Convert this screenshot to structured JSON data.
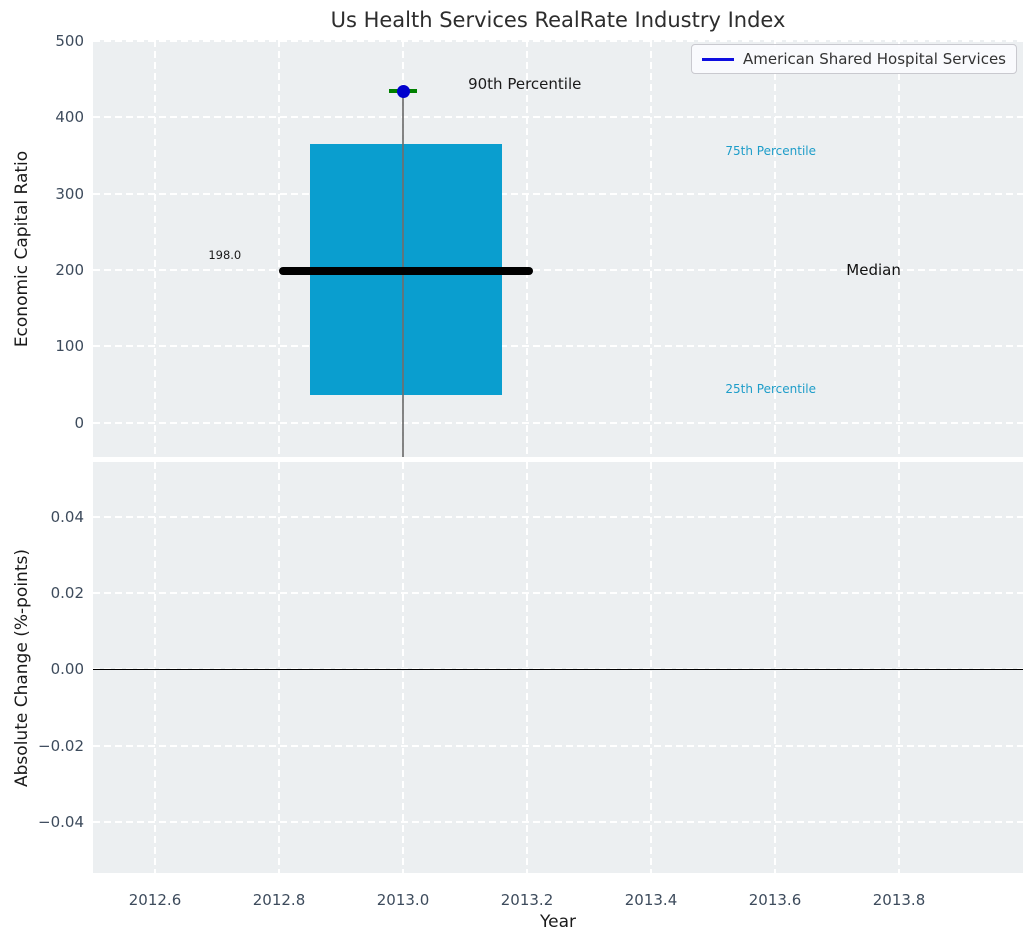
{
  "title": "Us Health Services RealRate Industry Index",
  "legend": {
    "label": "American Shared Hospital Services"
  },
  "colors": {
    "plot_bg": "#eceff1",
    "grid": "#ffffff",
    "box_fill": "#0a9ecf",
    "median_line": "#000000",
    "whisker": "#6f6f6f",
    "marker_dot": "#0000cd",
    "marker_cap": "#008000",
    "legend_line": "#0d0de0",
    "percentile_text": "#1e9dc9",
    "tick_text": "#3d4b5c",
    "label_text": "#1a1a1a",
    "zero_line": "#000000"
  },
  "chart_data": [
    {
      "type": "box",
      "title": "Us Health Services RealRate Industry Index",
      "ylabel": "Economic Capital Ratio",
      "xlim": [
        2012.5,
        2014.0
      ],
      "ylim": [
        -45,
        501
      ],
      "grid": true,
      "legend_position": "upper right",
      "yticks": {
        "values": [
          0,
          100,
          200,
          300,
          400,
          500
        ],
        "labels": [
          "0",
          "100",
          "200",
          "300",
          "400",
          "500"
        ]
      },
      "xticks": {
        "values": [
          2012.6,
          2012.8,
          2013.0,
          2013.2,
          2013.4,
          2013.6,
          2013.8
        ],
        "labels": []
      },
      "series": [
        {
          "name": "American Shared Hospital Services",
          "x": 2013.0,
          "p90": 434,
          "q3": 365,
          "median": 198,
          "q1": 36,
          "box_left": 2012.85,
          "box_right": 2013.16,
          "median_bar": {
            "x_left": 2012.8,
            "x_right": 2013.21,
            "value_label": "198.0"
          }
        }
      ],
      "annotations": [
        {
          "text": "90th Percentile",
          "x": 2013.105,
          "y": 443,
          "color": "#1a1a1a",
          "size": 15
        },
        {
          "text": "75th Percentile",
          "x": 2013.52,
          "y": 356,
          "color": "#1e9dc9",
          "size": 12
        },
        {
          "text": "Median",
          "x": 2013.715,
          "y": 200,
          "color": "#111111",
          "size": 15
        },
        {
          "text": "25th Percentile",
          "x": 2013.52,
          "y": 44,
          "color": "#1e9dc9",
          "size": 12
        },
        {
          "text": "198.0",
          "x": 2012.686,
          "y": 219,
          "color": "#1a1a1a",
          "size": 11.5
        }
      ]
    },
    {
      "type": "line",
      "ylabel": "Absolute Change (%-points)",
      "xlabel": "Year",
      "xlim": [
        2012.5,
        2014.0
      ],
      "ylim": [
        -0.0535,
        0.0545
      ],
      "grid": true,
      "zero_line": 0.0,
      "yticks": {
        "values": [
          0.04,
          0.02,
          0.0,
          -0.02,
          -0.04
        ],
        "labels": [
          "0.04",
          "0.02",
          "0.00",
          "−0.02",
          "−0.04"
        ]
      },
      "xticks": {
        "values": [
          2012.6,
          2012.8,
          2013.0,
          2013.2,
          2013.4,
          2013.6,
          2013.8
        ],
        "labels": [
          "2012.6",
          "2012.8",
          "2013.0",
          "2013.2",
          "2013.4",
          "2013.6",
          "2013.8"
        ]
      },
      "series": []
    }
  ]
}
